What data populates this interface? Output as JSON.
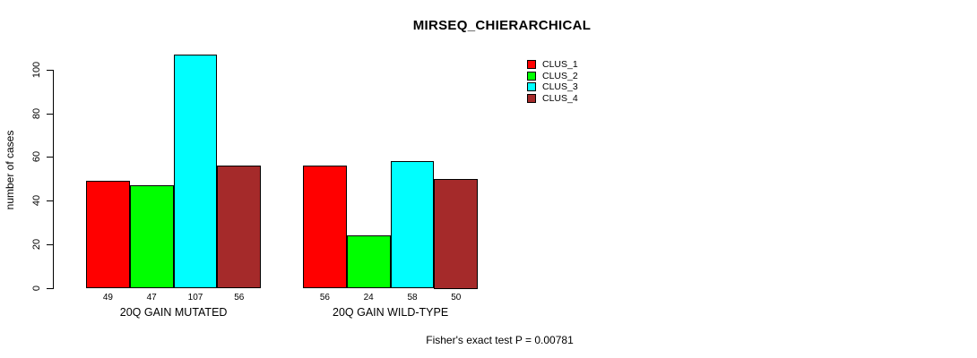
{
  "title": "MIRSEQ_CHIERARCHICAL",
  "footnote": "Fisher's exact test P = 0.00781",
  "chart_data": {
    "type": "bar",
    "title": "MIRSEQ_CHIERARCHICAL",
    "xlabel": "",
    "ylabel": "number of cases",
    "categories": [
      "20Q GAIN MUTATED",
      "20Q GAIN WILD-TYPE"
    ],
    "series": [
      {
        "name": "CLUS_1",
        "color": "#ff0000",
        "values": [
          49,
          56
        ]
      },
      {
        "name": "CLUS_2",
        "color": "#00ff00",
        "values": [
          47,
          24
        ]
      },
      {
        "name": "CLUS_3",
        "color": "#00ffff",
        "values": [
          107,
          58
        ]
      },
      {
        "name": "CLUS_4",
        "color": "#a52a2a",
        "values": [
          56,
          50
        ]
      }
    ],
    "bar_value_labels": [
      [
        49,
        47,
        107,
        56
      ],
      [
        56,
        24,
        58,
        50
      ]
    ],
    "yticks": [
      0,
      20,
      40,
      60,
      80,
      100
    ],
    "ylim": [
      0,
      107
    ],
    "grid": false,
    "legend_position": "top-right",
    "annotation": "Fisher's exact test P = 0.00781",
    "bar_border_color": "#000000",
    "background_color": "#ffffff"
  }
}
